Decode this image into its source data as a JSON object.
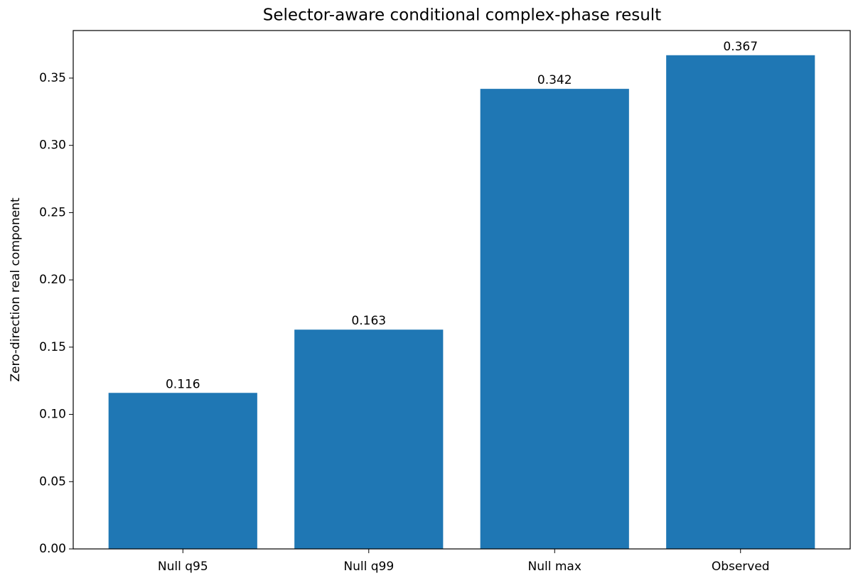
{
  "chart_data": {
    "type": "bar",
    "title": "Selector-aware conditional complex-phase result",
    "y_label": "Zero-direction real component",
    "categories": [
      "Null q95",
      "Null q99",
      "Null max",
      "Observed"
    ],
    "values": [
      0.116,
      0.163,
      0.342,
      0.367
    ],
    "color": "#1f77b4",
    "ylim": [
      0,
      0.38535
    ],
    "yticks": [
      {
        "value": 0,
        "label": "0.00"
      },
      {
        "value": 0.05,
        "label": "0.05"
      },
      {
        "value": 0.1,
        "label": "0.10"
      },
      {
        "value": 0.15,
        "label": "0.15"
      },
      {
        "value": 0.2,
        "label": "0.20"
      },
      {
        "value": 0.25,
        "label": "0.25"
      },
      {
        "value": 0.3,
        "label": "0.30"
      },
      {
        "value": 0.35,
        "label": "0.35"
      }
    ],
    "grid": false
  }
}
